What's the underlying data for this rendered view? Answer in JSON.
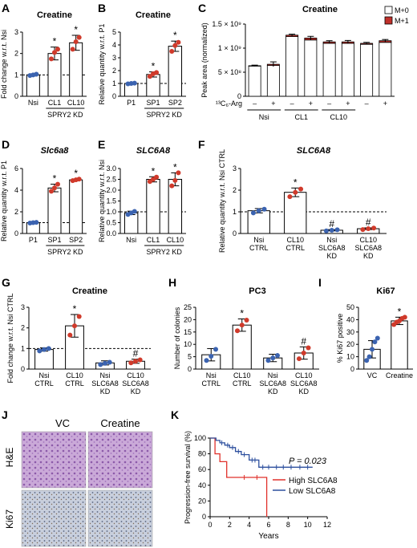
{
  "chart_data": [
    {
      "id": "A",
      "type": "bar",
      "title": "Creatine",
      "categories": [
        "Nsi",
        "CL1",
        "CL10"
      ],
      "values": [
        1.0,
        2.0,
        2.5
      ],
      "errors": [
        0.05,
        0.3,
        0.35
      ],
      "points": [
        [
          0.97,
          1.0,
          1.03
        ],
        [
          1.75,
          2.05,
          2.2
        ],
        [
          2.2,
          2.55,
          2.75
        ]
      ],
      "point_color": "#d03a2b",
      "stars": [
        false,
        true,
        true
      ],
      "ylabel": "Fold change w.r.t. Nsi",
      "ylim": [
        0,
        3
      ],
      "yticks": [
        0,
        1,
        2,
        3
      ],
      "refline": 1,
      "group_label": "SPRY2 KD",
      "group_span": [
        1,
        2
      ]
    },
    {
      "id": "B",
      "type": "bar",
      "title": "Creatine",
      "categories": [
        "P1",
        "SP1",
        "SP2"
      ],
      "values": [
        1.0,
        1.7,
        3.9
      ],
      "errors": [
        0.05,
        0.2,
        0.4
      ],
      "points": [
        [
          0.97,
          1.0,
          1.02
        ],
        [
          1.55,
          1.75,
          1.85
        ],
        [
          3.5,
          3.95,
          4.2
        ]
      ],
      "point_color": "#d03a2b",
      "stars": [
        false,
        true,
        true
      ],
      "ylabel": "Relative quantity w.r.t. P1",
      "ylim": [
        0,
        5
      ],
      "yticks": [
        0,
        1,
        2,
        3,
        4,
        5
      ],
      "refline": 1,
      "group_label": "SPRY2 KD",
      "group_span": [
        1,
        2
      ]
    },
    {
      "id": "C",
      "type": "stacked-bar",
      "title": "Creatine",
      "ylabel": "Peak area (normalized)",
      "ylim": [
        0,
        1500000000
      ],
      "yticks": [
        0,
        500000000,
        1000000000,
        1500000000
      ],
      "ytick_labels": [
        "0",
        "5 × 10⁸",
        "1 × 10⁹",
        "1.5 × 10⁹"
      ],
      "xlabel_prefix": "¹³C₆-Arg",
      "bar_labels": [
        "–",
        "+",
        "–",
        "+",
        "–",
        "+",
        "–",
        "+"
      ],
      "groups": [
        "Nsi",
        "CL1",
        "CL10"
      ],
      "group_spans": [
        [
          0,
          1
        ],
        [
          2,
          3
        ],
        [
          4,
          5
        ]
      ],
      "series": [
        {
          "name": "M+0",
          "values": [
            630000000,
            640000000,
            1240000000,
            1170000000,
            1100000000,
            1100000000,
            1080000000,
            1120000000
          ],
          "color": "#ffffff"
        },
        {
          "name": "M+1",
          "values": [
            5000000,
            25000000,
            30000000,
            40000000,
            30000000,
            30000000,
            20000000,
            35000000
          ],
          "color": "#c0302a"
        }
      ],
      "errors": [
        12000000,
        50000000,
        20000000,
        35000000,
        25000000,
        30000000,
        20000000,
        25000000
      ],
      "legend_position": "top-right"
    },
    {
      "id": "D",
      "type": "bar",
      "title": "Slc6a8",
      "title_italic": true,
      "categories": [
        "P1",
        "SP1",
        "SP2"
      ],
      "values": [
        1.0,
        4.2,
        4.95
      ],
      "errors": [
        0.05,
        0.35,
        0.08
      ],
      "points": [
        [
          0.96,
          1.0,
          1.03
        ],
        [
          3.9,
          4.2,
          4.55
        ],
        [
          4.88,
          4.95,
          5.02
        ]
      ],
      "point_color": "#d03a2b",
      "stars": [
        false,
        true,
        true
      ],
      "ylabel": "Relative quantity w.r.t. P1",
      "ylim": [
        0,
        6
      ],
      "yticks": [
        0,
        2,
        4,
        6
      ],
      "refline": 1,
      "group_label": "SPRY2 KD",
      "group_span": [
        1,
        2
      ]
    },
    {
      "id": "E",
      "type": "bar",
      "title": "SLC6A8",
      "title_italic": true,
      "categories": [
        "Nsi",
        "CL1",
        "CL10"
      ],
      "values": [
        0.95,
        2.5,
        2.5
      ],
      "errors": [
        0.08,
        0.12,
        0.3
      ],
      "points": [
        [
          0.88,
          0.95,
          1.02
        ],
        [
          2.4,
          2.5,
          2.6
        ],
        [
          2.2,
          2.45,
          2.8
        ]
      ],
      "point_color": "#d03a2b",
      "stars": [
        false,
        true,
        true
      ],
      "ylabel": "Relative quantity w.r.t. Nsi",
      "ylim": [
        0,
        3
      ],
      "yticks": [
        0.0,
        0.5,
        1.0,
        1.5,
        2.0,
        2.5,
        3.0
      ],
      "ytick_decimals": 1,
      "refline": 1,
      "group_label": "SPRY2 KD",
      "group_span": [
        1,
        2
      ]
    },
    {
      "id": "F",
      "type": "bar",
      "title": "SLC6A8",
      "title_italic": true,
      "categories": [
        "Nsi\nCTRL",
        "CL10\nCTRL",
        "Nsi\nSLC6A8\nKD",
        "CL10\nSLC6A8\nKD"
      ],
      "values": [
        1.05,
        1.9,
        0.15,
        0.22
      ],
      "errors": [
        0.1,
        0.2,
        0.03,
        0.04
      ],
      "points": [
        [
          0.95,
          1.05,
          1.12
        ],
        [
          1.7,
          1.9,
          2.05
        ],
        [
          0.12,
          0.15,
          0.17
        ],
        [
          0.18,
          0.22,
          0.25
        ]
      ],
      "point_colors": [
        "#3b63b0",
        "#d03a2b",
        "#3b63b0",
        "#d03a2b"
      ],
      "marks": [
        "",
        "*",
        "#",
        "#"
      ],
      "ylabel": "Relative quantity w.r.t. Nsi CTRL",
      "ylim": [
        0,
        3
      ],
      "yticks": [
        0,
        1,
        2,
        3
      ],
      "refline": 1
    },
    {
      "id": "G",
      "type": "bar",
      "title": "Creatine",
      "categories": [
        "Nsi\nCTRL",
        "CL10\nCTRL",
        "Nsi\nSLC6A8\nKD",
        "CL10\nSLC6A8\nKD"
      ],
      "values": [
        0.95,
        2.1,
        0.3,
        0.38
      ],
      "errors": [
        0.08,
        0.55,
        0.1,
        0.1
      ],
      "points": [
        [
          0.88,
          0.95,
          1.0
        ],
        [
          1.65,
          2.1,
          2.55
        ],
        [
          0.22,
          0.28,
          0.33
        ],
        [
          0.3,
          0.38,
          0.45
        ]
      ],
      "point_colors": [
        "#3b63b0",
        "#d03a2b",
        "#3b63b0",
        "#d03a2b"
      ],
      "marks": [
        "",
        "*",
        "",
        "#"
      ],
      "ylabel": "Fold change w.r.t. Nsi CTRL",
      "ylim": [
        0,
        3
      ],
      "yticks": [
        0,
        1,
        2,
        3
      ],
      "refline": 1
    },
    {
      "id": "H",
      "type": "bar",
      "title": "PC3",
      "categories": [
        "Nsi\nCTRL",
        "CL10\nCTRL",
        "Nsi\nSLC6A8\nKD",
        "CL10\nSLC6A8\nKD"
      ],
      "values": [
        5.8,
        17.8,
        4.5,
        6.5
      ],
      "errors": [
        2.5,
        2.5,
        1.5,
        2.5
      ],
      "points": [
        [
          3.5,
          5.2,
          8.0
        ],
        [
          15.5,
          17.8,
          19.8
        ],
        [
          3.5,
          4.5,
          5.5
        ],
        [
          4.2,
          6.5,
          8.6
        ]
      ],
      "point_colors": [
        "#3b63b0",
        "#d03a2b",
        "#3b63b0",
        "#d03a2b"
      ],
      "marks": [
        "",
        "*",
        "",
        "#"
      ],
      "ylabel": "Number of colonies",
      "ylim": [
        0,
        25
      ],
      "yticks": [
        0,
        5,
        10,
        15,
        20,
        25
      ]
    },
    {
      "id": "I",
      "type": "bar",
      "title": "Ki67",
      "categories": [
        "VC",
        "Creatine"
      ],
      "values": [
        16,
        39
      ],
      "errors": [
        7,
        3
      ],
      "points": [
        [
          7,
          10,
          16,
          22,
          25
        ],
        [
          36,
          38,
          39,
          41,
          42
        ]
      ],
      "point_colors": [
        "#3b63b0",
        "#d03a2b"
      ],
      "marks": [
        "",
        "*"
      ],
      "ylabel": "% Ki67 positive",
      "ylim": [
        0,
        50
      ],
      "yticks": [
        0,
        10,
        20,
        30,
        40,
        50
      ]
    },
    {
      "id": "K",
      "type": "line",
      "subtype": "kaplan-meier",
      "xlabel": "Years",
      "ylabel": "Progression-free survival (%)",
      "xlim": [
        0,
        12
      ],
      "xticks": [
        0,
        2,
        4,
        6,
        8,
        10,
        12
      ],
      "ylim": [
        0,
        100
      ],
      "yticks": [
        0,
        20,
        40,
        60,
        80,
        100
      ],
      "annotation": "P = 0.023",
      "series": [
        {
          "name": "High SLC6A8",
          "color": "#e0312b",
          "x": [
            0,
            0.5,
            0.5,
            1.0,
            1.0,
            1.7,
            1.7,
            5.8,
            5.8
          ],
          "y": [
            100,
            100,
            80,
            80,
            70,
            70,
            50,
            50,
            0
          ],
          "censor_x": [
            3.5,
            4.8
          ],
          "censor_y": [
            50,
            50
          ]
        },
        {
          "name": "Low SLC6A8",
          "color": "#2c4f9e",
          "x": [
            0,
            0.6,
            0.6,
            1.0,
            1.0,
            1.5,
            1.5,
            2.0,
            2.0,
            2.6,
            2.6,
            3.2,
            3.2,
            4.0,
            4.0,
            5.0,
            5.0,
            10.5
          ],
          "y": [
            100,
            100,
            97,
            97,
            94,
            94,
            91,
            91,
            88,
            88,
            83,
            83,
            79,
            79,
            72,
            72,
            63,
            63
          ],
          "censor_x": [
            1.2,
            1.8,
            2.3,
            2.9,
            3.5,
            4.3,
            4.6,
            5.4,
            6.0,
            6.8,
            7.5,
            8.3,
            9.2,
            10.0
          ],
          "censor_y": [
            94,
            91,
            88,
            83,
            79,
            72,
            72,
            63,
            63,
            63,
            63,
            63,
            63,
            63
          ]
        }
      ]
    }
  ],
  "panels": {
    "A": "A",
    "B": "B",
    "C": "C",
    "D": "D",
    "E": "E",
    "F": "F",
    "G": "G",
    "H": "H",
    "I": "I",
    "J": "J",
    "K": "K"
  },
  "histology": {
    "col_labels": [
      "VC",
      "Creatine"
    ],
    "row_labels": [
      "H&E",
      "Ki67"
    ]
  },
  "colors": {
    "he_bg": "#c9b0d6",
    "he_fg": "#8a5aa8",
    "ki_bg": "#c4cbd9",
    "ki_fg": "#4f5a78"
  }
}
